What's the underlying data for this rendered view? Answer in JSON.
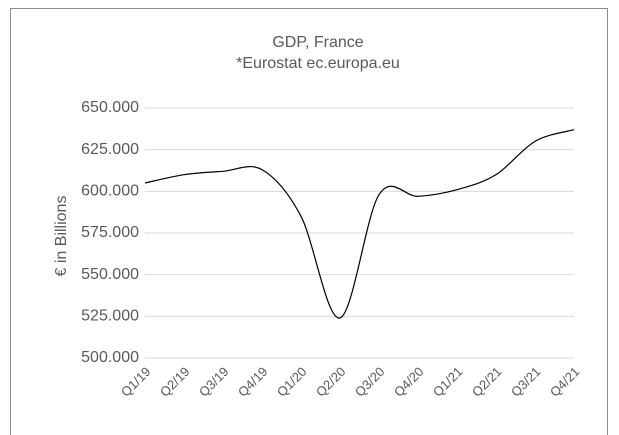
{
  "chart_data": {
    "type": "line",
    "title": "GDP, France",
    "subtitle": "*Eurostat ec.europa.eu",
    "ylabel": "€ in Billions",
    "categories": [
      "Q1/19",
      "Q2/19",
      "Q3/19",
      "Q4/19",
      "Q1/20",
      "Q2/20",
      "Q3/20",
      "Q4/20",
      "Q1/21",
      "Q2/21",
      "Q3/21",
      "Q4/21"
    ],
    "series": [
      {
        "name": "GDP",
        "color": "#000000",
        "values": [
          605,
          610,
          612,
          613,
          585,
          524,
          598,
          597,
          601,
          610,
          630,
          637
        ]
      }
    ],
    "ylim": [
      500,
      650
    ],
    "yticks": [
      {
        "value": 500,
        "label": "500.000"
      },
      {
        "value": 525,
        "label": "525.000"
      },
      {
        "value": 550,
        "label": "550.000"
      },
      {
        "value": 575,
        "label": "575.000"
      },
      {
        "value": 600,
        "label": "600.000"
      },
      {
        "value": 625,
        "label": "625.000"
      },
      {
        "value": 650,
        "label": "650.000"
      }
    ],
    "grid": true
  }
}
